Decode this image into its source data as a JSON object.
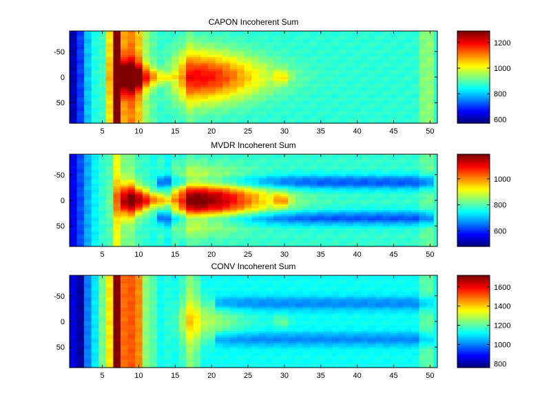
{
  "chart_data": [
    {
      "type": "heatmap",
      "title": "CAPON Incoherent Sum",
      "xlim": [
        0.5,
        51
      ],
      "ylim": [
        -90,
        90
      ],
      "y_reversed": true,
      "x_ticks": [
        5,
        10,
        15,
        20,
        25,
        30,
        35,
        40,
        45,
        50
      ],
      "y_ticks": [
        -50,
        0,
        50
      ],
      "colormap": "jet",
      "colorbar": {
        "min": 570,
        "max": 1290,
        "ticks": [
          600,
          800,
          1000,
          1200
        ]
      },
      "profile": {
        "base": 870,
        "bands": [
          [
            1,
            610
          ],
          [
            2,
            700
          ],
          [
            3,
            800
          ],
          [
            4,
            860
          ],
          [
            5,
            880
          ],
          [
            6,
            1040
          ],
          [
            7,
            1290
          ],
          [
            8,
            1080
          ],
          [
            9,
            1110
          ],
          [
            10,
            1060
          ],
          [
            11,
            950
          ],
          [
            12,
            900
          ],
          [
            14,
            870
          ],
          [
            17,
            900
          ],
          [
            29.5,
            890
          ],
          [
            49,
            930
          ],
          [
            50,
            940
          ]
        ],
        "lobes": [
          {
            "center_x": 8.5,
            "amplitude": 310,
            "x_width": 2.0,
            "y_width": 24,
            "taper": 0.8
          },
          {
            "center_x": 18,
            "amplitude": 330,
            "x_width": 3.6,
            "y_width": 36,
            "taper": 0.25
          },
          {
            "center_x": 29.3,
            "amplitude": 140,
            "x_width": 0.5,
            "y_width": 9,
            "taper": 0
          }
        ],
        "notches": {
          "amplitude": 0,
          "start_x": 20
        }
      }
    },
    {
      "type": "heatmap",
      "title": "MVDR Incoherent Sum",
      "xlim": [
        0.5,
        51
      ],
      "ylim": [
        -90,
        90
      ],
      "y_reversed": true,
      "x_ticks": [
        5,
        10,
        15,
        20,
        25,
        30,
        35,
        40,
        45,
        50
      ],
      "y_ticks": [
        -50,
        0,
        50
      ],
      "colormap": "jet",
      "colorbar": {
        "min": 480,
        "max": 1190,
        "ticks": [
          600,
          800,
          1000
        ]
      },
      "profile": {
        "base": 780,
        "bands": [
          [
            1,
            560
          ],
          [
            2,
            620
          ],
          [
            3,
            690
          ],
          [
            4,
            740
          ],
          [
            5,
            780
          ],
          [
            6,
            800
          ],
          [
            7,
            920
          ],
          [
            8,
            830
          ],
          [
            9,
            830
          ],
          [
            10,
            790
          ],
          [
            12,
            760
          ],
          [
            14,
            740
          ],
          [
            16,
            760
          ],
          [
            17,
            790
          ],
          [
            20,
            770
          ],
          [
            29.5,
            770
          ],
          [
            49,
            810
          ],
          [
            50,
            820
          ]
        ],
        "lobes": [
          {
            "center_x": 8.7,
            "amplitude": 400,
            "x_width": 1.8,
            "y_width": 22,
            "taper": 0.8
          },
          {
            "center_x": 17.8,
            "amplitude": 420,
            "x_width": 3.8,
            "y_width": 34,
            "taper": 0.25
          },
          {
            "center_x": 29.3,
            "amplitude": 180,
            "x_width": 0.5,
            "y_width": 9,
            "taper": 0
          }
        ],
        "notches": {
          "amplitude": 150,
          "start_x": 12
        }
      }
    },
    {
      "type": "heatmap",
      "title": "CONV Incoherent Sum",
      "xlim": [
        0.5,
        51
      ],
      "ylim": [
        -90,
        90
      ],
      "y_reversed": true,
      "x_ticks": [
        5,
        10,
        15,
        20,
        25,
        30,
        35,
        40,
        45,
        50
      ],
      "y_ticks": [
        -50,
        0,
        50
      ],
      "colormap": "jet",
      "colorbar": {
        "min": 760,
        "max": 1720,
        "ticks": [
          800,
          1000,
          1200,
          1400,
          1600
        ]
      },
      "profile": {
        "base": 1130,
        "bands": [
          [
            1,
            850
          ],
          [
            2,
            790
          ],
          [
            3,
            1000
          ],
          [
            4,
            1100
          ],
          [
            5,
            1230
          ],
          [
            6,
            1380
          ],
          [
            7,
            1720
          ],
          [
            8,
            1500
          ],
          [
            9,
            1520
          ],
          [
            10,
            1470
          ],
          [
            11,
            1250
          ],
          [
            12,
            1200
          ],
          [
            14,
            1150
          ],
          [
            16,
            1170
          ],
          [
            17,
            1250
          ],
          [
            18,
            1200
          ],
          [
            29.5,
            1180
          ],
          [
            49,
            1200
          ],
          [
            50,
            1210
          ]
        ],
        "lobes": [
          {
            "center_x": 17.5,
            "amplitude": 170,
            "x_width": 2.5,
            "y_width": 28,
            "taper": 0.3
          },
          {
            "center_x": 29.3,
            "amplitude": 110,
            "x_width": 0.5,
            "y_width": 9,
            "taper": 0
          }
        ],
        "notches": {
          "amplitude": 120,
          "start_x": 20
        }
      }
    }
  ]
}
